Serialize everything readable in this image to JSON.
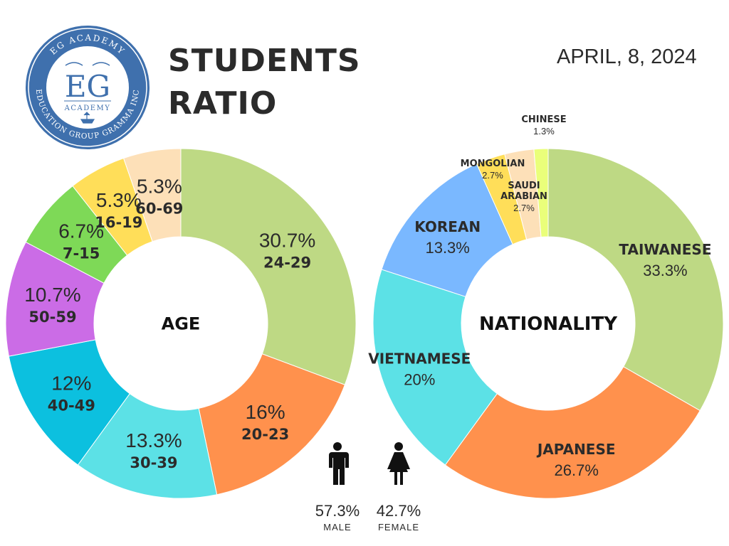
{
  "header": {
    "title_line1": "STUDENTS",
    "title_line2": "RATIO",
    "date": "APRIL, 8, 2024"
  },
  "logo": {
    "arc_top": "EG ACADEMY",
    "monogram": "EG",
    "sub": "ACADEMY",
    "arc_bottom": "EDUCATION GROUP GRAMMA INC",
    "colors": {
      "ring": "#3f70ad",
      "text": "#3f70ad"
    }
  },
  "gender": {
    "male": {
      "percent": "57.3%",
      "label": "MALE",
      "icon": "male-figure-icon"
    },
    "female": {
      "percent": "42.7%",
      "label": "FEMALE",
      "icon": "female-figure-icon"
    }
  },
  "chart_data": [
    {
      "type": "pie",
      "center_label": "AGE",
      "slices": [
        {
          "category": "24-29",
          "value": 30.7,
          "label": "30.7%",
          "color": "#bed984"
        },
        {
          "category": "20-23",
          "value": 16,
          "label": "16%",
          "color": "#ff914d"
        },
        {
          "category": "30-39",
          "value": 13.3,
          "label": "13.3%",
          "color": "#5ce1e6"
        },
        {
          "category": "40-49",
          "value": 12,
          "label": "12%",
          "color": "#0cc0df"
        },
        {
          "category": "50-59",
          "value": 10.7,
          "label": "10.7%",
          "color": "#cb6ce6"
        },
        {
          "category": "7-15",
          "value": 6.7,
          "label": "6.7%",
          "color": "#7ed957"
        },
        {
          "category": "16-19",
          "value": 5.3,
          "label": "5.3%",
          "color": "#ffde59"
        },
        {
          "category": "60-69",
          "value": 5.3,
          "label": "5.3%",
          "color": "#fde0b8"
        }
      ]
    },
    {
      "type": "pie",
      "center_label": "NATIONALITY",
      "slices": [
        {
          "category": "TAIWANESE",
          "value": 33.3,
          "label": "33.3%",
          "color": "#bed984"
        },
        {
          "category": "JAPANESE",
          "value": 26.7,
          "label": "26.7%",
          "color": "#ff914d"
        },
        {
          "category": "VIETNAMESE",
          "value": 20,
          "label": "20%",
          "color": "#5ce1e6"
        },
        {
          "category": "KOREAN",
          "value": 13.3,
          "label": "13.3%",
          "color": "#7ab8ff"
        },
        {
          "category": "MONGOLIAN",
          "value": 2.7,
          "label": "2.7%",
          "color": "#ffde59"
        },
        {
          "category": "SAUDI ARABIAN",
          "value": 2.7,
          "label": "2.7%",
          "color": "#fde0b8"
        },
        {
          "category": "CHINESE",
          "value": 1.3,
          "label": "1.3%",
          "color": "#eaff7a"
        }
      ]
    }
  ]
}
